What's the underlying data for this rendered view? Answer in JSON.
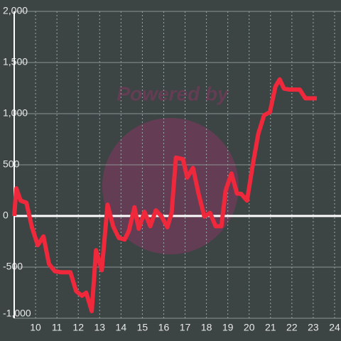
{
  "chart_data": {
    "type": "line",
    "watermark": "Powered by",
    "x": [
      9.0,
      9.1,
      9.3,
      9.57,
      9.83,
      10.1,
      10.37,
      10.63,
      10.9,
      11.17,
      11.63,
      11.9,
      12.17,
      12.37,
      12.63,
      12.83,
      13.1,
      13.37,
      13.63,
      13.9,
      14.17,
      14.37,
      14.63,
      14.83,
      15.1,
      15.37,
      15.63,
      15.9,
      16.17,
      16.37,
      16.57,
      16.9,
      17.1,
      17.37,
      17.63,
      17.9,
      18.17,
      18.43,
      18.7,
      18.9,
      19.17,
      19.43,
      19.63,
      19.9,
      20.17,
      20.43,
      20.7,
      20.97,
      21.23,
      21.43,
      21.63,
      21.9,
      22.37,
      22.63,
      23.17
    ],
    "series": [
      {
        "color": "#f0283c",
        "values": [
          0,
          270,
          150,
          130,
          -110,
          -285,
          -200,
          -470,
          -540,
          -550,
          -550,
          -735,
          -780,
          -750,
          -930,
          -335,
          -530,
          110,
          -100,
          -215,
          -230,
          -145,
          85,
          -125,
          40,
          -100,
          55,
          -5,
          -110,
          30,
          570,
          555,
          375,
          470,
          220,
          -5,
          30,
          -100,
          -100,
          250,
          415,
          220,
          215,
          150,
          500,
          805,
          985,
          1015,
          1265,
          1335,
          1245,
          1235,
          1235,
          1150,
          1150
        ]
      }
    ],
    "xlim": [
      9,
      24.3
    ],
    "xticks": [
      10,
      11,
      12,
      13,
      14,
      15,
      16,
      17,
      18,
      19,
      20,
      21,
      22,
      23,
      24
    ],
    "ylim": [
      -1000,
      2000
    ],
    "yticks": [
      {
        "value": -1000,
        "label": "-1,000"
      },
      -500,
      0,
      500,
      {
        "value": 1000,
        "label": "1,000"
      },
      {
        "value": 1500,
        "label": "1,500"
      },
      {
        "value": 2000,
        "label": "2,000"
      }
    ],
    "grid": true
  }
}
